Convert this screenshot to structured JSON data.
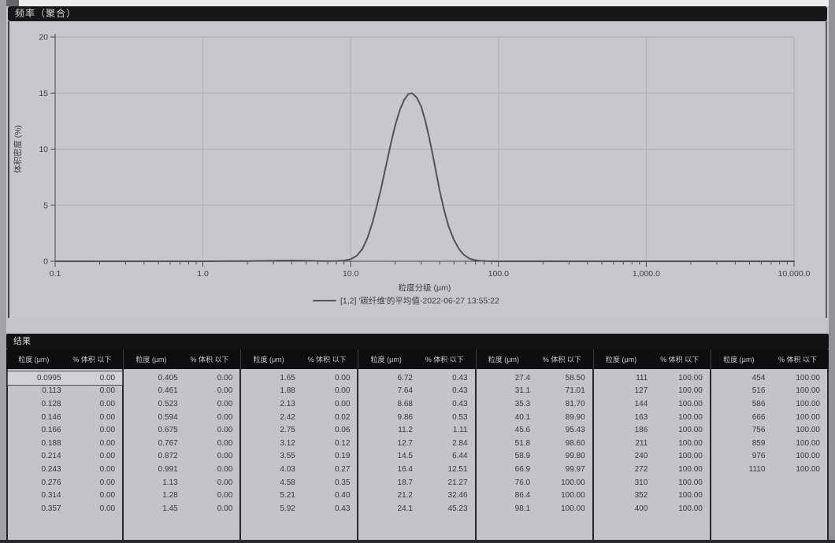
{
  "chart": {
    "title": "频率（聚合）",
    "ylabel": "体积密度 (%)",
    "xlabel": "粒度分级 (μm)",
    "legend": "[1,2] '碳纤维'的平均值-2022-06-27 13:55:22"
  },
  "chart_data": {
    "type": "line",
    "title": "频率（聚合）",
    "xlabel": "粒度分级 (μm)",
    "ylabel": "体积密度 (%)",
    "x_scale": "log",
    "xlim": [
      0.1,
      10000
    ],
    "ylim": [
      0,
      20
    ],
    "x_ticks": [
      0.1,
      1,
      10,
      100,
      1000,
      10000
    ],
    "x_tick_labels": [
      "0.1",
      "1.0",
      "10.0",
      "100.0",
      "1,000.0",
      "10,000.0"
    ],
    "y_ticks": [
      0,
      5,
      10,
      15,
      20
    ],
    "y_tick_labels": [
      "0",
      "5",
      "10",
      "15",
      "20"
    ],
    "grid": true,
    "legend_position": "bottom",
    "series": [
      {
        "name": "[1,2] '碳纤维'的平均值-2022-06-27 13:55:22",
        "peak": {
          "x_um": 26,
          "y_pct": 15.0
        },
        "points": [
          [
            0.1,
            0
          ],
          [
            0.5,
            0
          ],
          [
            1,
            0
          ],
          [
            2,
            0.02
          ],
          [
            3,
            0.05
          ],
          [
            4,
            0.07
          ],
          [
            5,
            0.05
          ],
          [
            6,
            0.03
          ],
          [
            7,
            0.02
          ],
          [
            8,
            0.03
          ],
          [
            9,
            0.06
          ],
          [
            10,
            0.18
          ],
          [
            11,
            0.5
          ],
          [
            12,
            1.1
          ],
          [
            13,
            2.1
          ],
          [
            14,
            3.4
          ],
          [
            15,
            4.9
          ],
          [
            16,
            6.4
          ],
          [
            17,
            8.0
          ],
          [
            18,
            9.5
          ],
          [
            19,
            10.9
          ],
          [
            20,
            12.1
          ],
          [
            21.5,
            13.5
          ],
          [
            23,
            14.4
          ],
          [
            24.5,
            14.9
          ],
          [
            26,
            15.0
          ],
          [
            28,
            14.6
          ],
          [
            30,
            13.8
          ],
          [
            32,
            12.5
          ],
          [
            34,
            11.0
          ],
          [
            36,
            9.4
          ],
          [
            38,
            7.8
          ],
          [
            40,
            6.3
          ],
          [
            43,
            4.5
          ],
          [
            46,
            3.1
          ],
          [
            50,
            1.9
          ],
          [
            54,
            1.1
          ],
          [
            58,
            0.6
          ],
          [
            63,
            0.27
          ],
          [
            68,
            0.12
          ],
          [
            75,
            0.04
          ],
          [
            85,
            0.01
          ],
          [
            100,
            0
          ],
          [
            300,
            0
          ],
          [
            1000,
            0
          ],
          [
            10000,
            0
          ]
        ]
      }
    ]
  },
  "table": {
    "title": "结果",
    "col_headers": {
      "size": "粒度 (μm)",
      "pct": "% 体积 以下"
    },
    "groups": [
      [
        [
          "0.0995",
          "0.00"
        ],
        [
          "0.113",
          "0.00"
        ],
        [
          "0.128",
          "0.00"
        ],
        [
          "0.146",
          "0.00"
        ],
        [
          "0.166",
          "0.00"
        ],
        [
          "0.188",
          "0.00"
        ],
        [
          "0.214",
          "0.00"
        ],
        [
          "0.243",
          "0.00"
        ],
        [
          "0.276",
          "0.00"
        ],
        [
          "0.314",
          "0.00"
        ],
        [
          "0.357",
          "0.00"
        ]
      ],
      [
        [
          "0.405",
          "0.00"
        ],
        [
          "0.461",
          "0.00"
        ],
        [
          "0.523",
          "0.00"
        ],
        [
          "0.594",
          "0.00"
        ],
        [
          "0.675",
          "0.00"
        ],
        [
          "0.767",
          "0.00"
        ],
        [
          "0.872",
          "0.00"
        ],
        [
          "0.991",
          "0.00"
        ],
        [
          "1.13",
          "0.00"
        ],
        [
          "1.28",
          "0.00"
        ],
        [
          "1.45",
          "0.00"
        ]
      ],
      [
        [
          "1.65",
          "0.00"
        ],
        [
          "1.88",
          "0.00"
        ],
        [
          "2.13",
          "0.00"
        ],
        [
          "2.42",
          "0.02"
        ],
        [
          "2.75",
          "0.06"
        ],
        [
          "3.12",
          "0.12"
        ],
        [
          "3.55",
          "0.19"
        ],
        [
          "4.03",
          "0.27"
        ],
        [
          "4.58",
          "0.35"
        ],
        [
          "5.21",
          "0.40"
        ],
        [
          "5.92",
          "0.43"
        ]
      ],
      [
        [
          "6.72",
          "0.43"
        ],
        [
          "7.64",
          "0.43"
        ],
        [
          "8.68",
          "0.43"
        ],
        [
          "9.86",
          "0.53"
        ],
        [
          "11.2",
          "1.11"
        ],
        [
          "12.7",
          "2.84"
        ],
        [
          "14.5",
          "6.44"
        ],
        [
          "16.4",
          "12.51"
        ],
        [
          "18.7",
          "21.27"
        ],
        [
          "21.2",
          "32.46"
        ],
        [
          "24.1",
          "45.23"
        ]
      ],
      [
        [
          "27.4",
          "58.50"
        ],
        [
          "31.1",
          "71.01"
        ],
        [
          "35.3",
          "81.70"
        ],
        [
          "40.1",
          "89.90"
        ],
        [
          "45.6",
          "95.43"
        ],
        [
          "51.8",
          "98.60"
        ],
        [
          "58.9",
          "99.80"
        ],
        [
          "66.9",
          "99.97"
        ],
        [
          "76.0",
          "100.00"
        ],
        [
          "86.4",
          "100.00"
        ],
        [
          "98.1",
          "100.00"
        ]
      ],
      [
        [
          "111",
          "100.00"
        ],
        [
          "127",
          "100.00"
        ],
        [
          "144",
          "100.00"
        ],
        [
          "163",
          "100.00"
        ],
        [
          "186",
          "100.00"
        ],
        [
          "211",
          "100.00"
        ],
        [
          "240",
          "100.00"
        ],
        [
          "272",
          "100.00"
        ],
        [
          "310",
          "100.00"
        ],
        [
          "352",
          "100.00"
        ],
        [
          "400",
          "100.00"
        ]
      ],
      [
        [
          "454",
          "100.00"
        ],
        [
          "516",
          "100.00"
        ],
        [
          "586",
          "100.00"
        ],
        [
          "666",
          "100.00"
        ],
        [
          "756",
          "100.00"
        ],
        [
          "859",
          "100.00"
        ],
        [
          "976",
          "100.00"
        ],
        [
          "1110",
          "100.00"
        ]
      ]
    ]
  }
}
